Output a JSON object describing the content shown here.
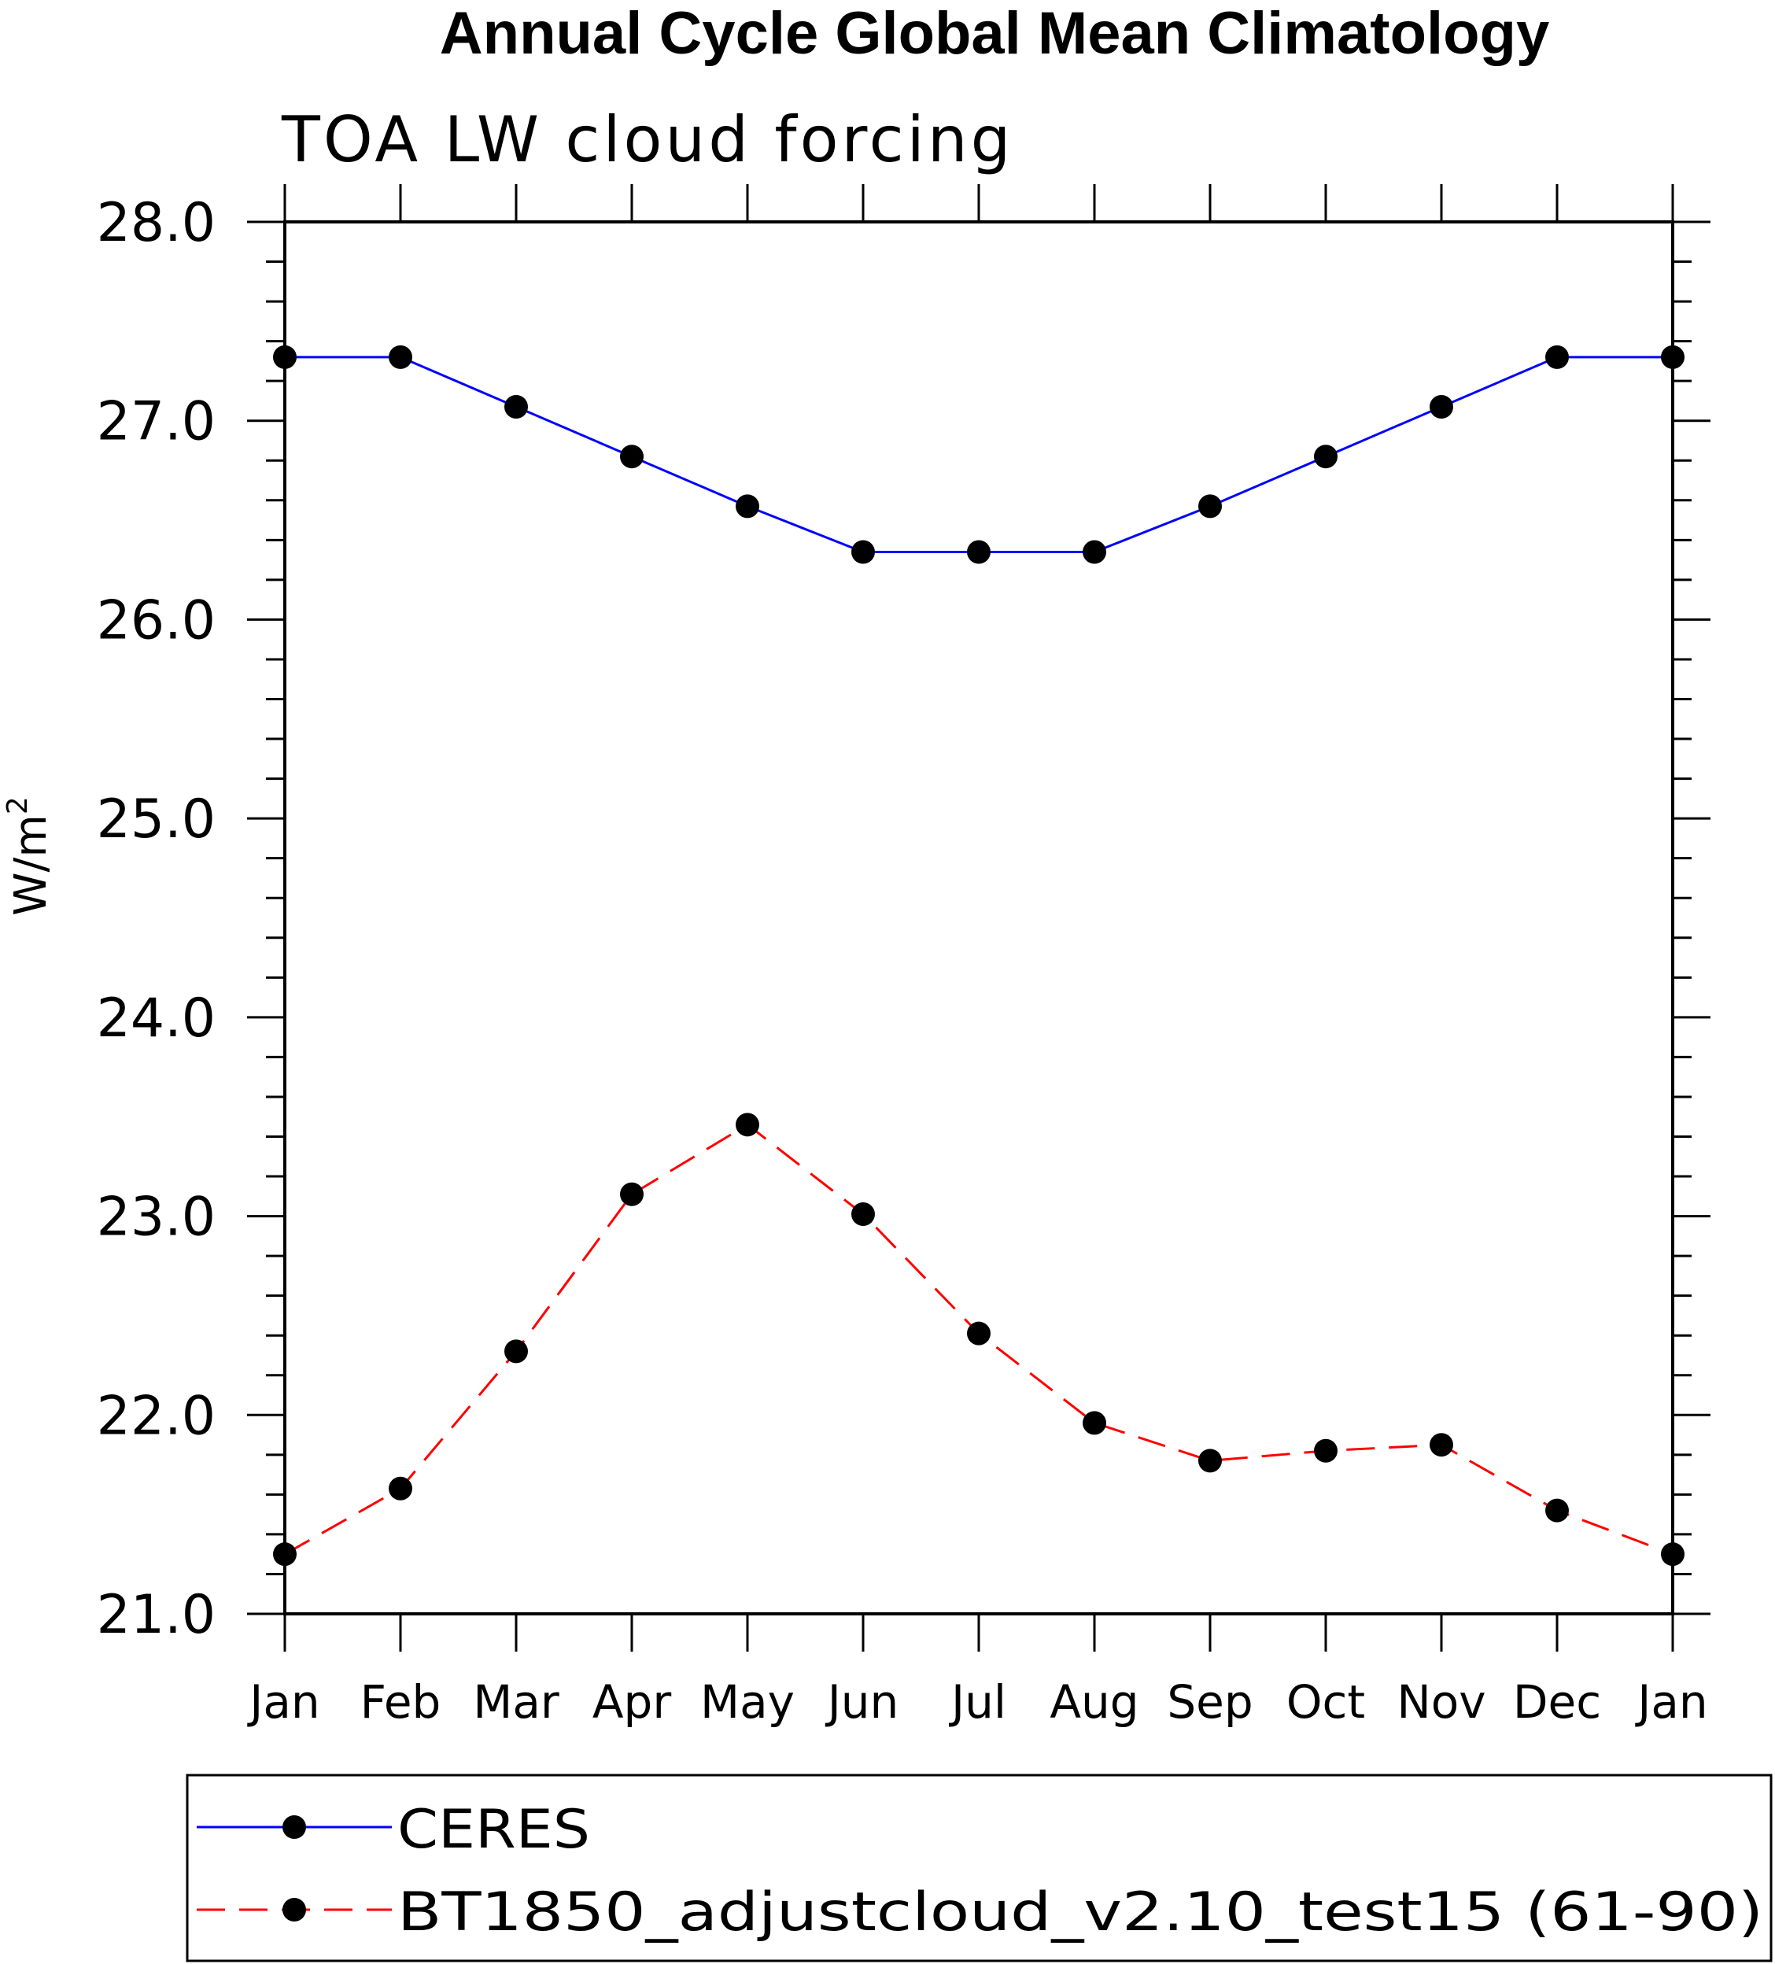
{
  "chart_data": {
    "type": "line",
    "title": "Annual Cycle Global Mean Climatology",
    "subtitle": "TOA LW cloud forcing",
    "xlabel": "",
    "ylabel": "W/m",
    "ylabel_superscript": "2",
    "categories": [
      "Jan",
      "Feb",
      "Mar",
      "Apr",
      "May",
      "Jun",
      "Jul",
      "Aug",
      "Sep",
      "Oct",
      "Nov",
      "Dec",
      "Jan"
    ],
    "ylim": [
      21.0,
      28.0
    ],
    "yticks": [
      "21.0",
      "22.0",
      "23.0",
      "24.0",
      "25.0",
      "26.0",
      "27.0",
      "28.0"
    ],
    "grid": false,
    "legend_position": "bottom",
    "series": [
      {
        "name": "CERES",
        "color": "#0000ff",
        "dash": "solid",
        "marker": "filled-circle",
        "values": [
          27.32,
          27.32,
          27.07,
          26.82,
          26.57,
          26.34,
          26.34,
          26.34,
          26.57,
          26.82,
          27.07,
          27.32,
          27.32
        ]
      },
      {
        "name": "BT1850_adjustcloud_v2.10_test15 (61-90)",
        "color": "#ff0000",
        "dash": "dashed",
        "marker": "filled-circle",
        "values": [
          21.3,
          21.63,
          22.32,
          23.11,
          23.46,
          23.01,
          22.41,
          21.96,
          21.77,
          21.82,
          21.85,
          21.52,
          21.3
        ]
      }
    ]
  }
}
